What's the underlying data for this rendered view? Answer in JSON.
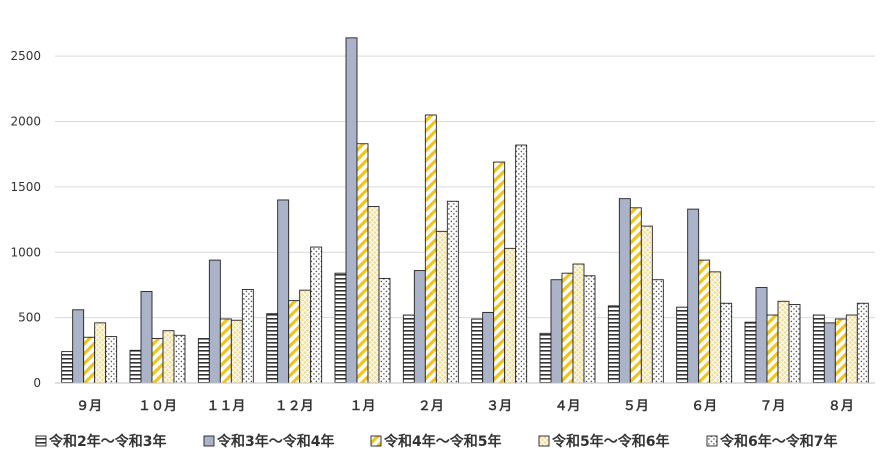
{
  "chart_data": {
    "type": "bar",
    "title": "",
    "xlabel": "",
    "ylabel": "",
    "ylim": [
      0,
      2700
    ],
    "yticks": [
      0,
      500,
      1000,
      1500,
      2000,
      2500
    ],
    "grid": "horizontal",
    "legend_position": "bottom",
    "categories": [
      "９月",
      "１０月",
      "１１月",
      "１２月",
      "１月",
      "２月",
      "３月",
      "４月",
      "５月",
      "６月",
      "７月",
      "８月"
    ],
    "series": [
      {
        "name": "令和2年～令和3年",
        "pattern": "hlines",
        "color": "#333333",
        "values": [
          240,
          250,
          340,
          530,
          840,
          520,
          490,
          380,
          590,
          580,
          465,
          520
        ]
      },
      {
        "name": "令和3年～令和4年",
        "pattern": "solid",
        "color": "#aab3c8",
        "values": [
          560,
          700,
          940,
          1400,
          2640,
          860,
          540,
          790,
          1410,
          1330,
          730,
          460
        ]
      },
      {
        "name": "令和4年～令和5年",
        "pattern": "diagonal",
        "color": "#f0c419",
        "values": [
          350,
          340,
          490,
          630,
          1830,
          2050,
          1690,
          840,
          1340,
          940,
          520,
          490
        ]
      },
      {
        "name": "令和5年～令和6年",
        "pattern": "crosshatch",
        "color": "#f3df9a",
        "values": [
          460,
          400,
          480,
          710,
          1350,
          1160,
          1030,
          910,
          1200,
          850,
          625,
          520
        ]
      },
      {
        "name": "令和6年～令和7年",
        "pattern": "dots",
        "color": "#555555",
        "values": [
          355,
          365,
          715,
          1040,
          800,
          1390,
          1820,
          820,
          790,
          610,
          600,
          610
        ]
      }
    ]
  }
}
